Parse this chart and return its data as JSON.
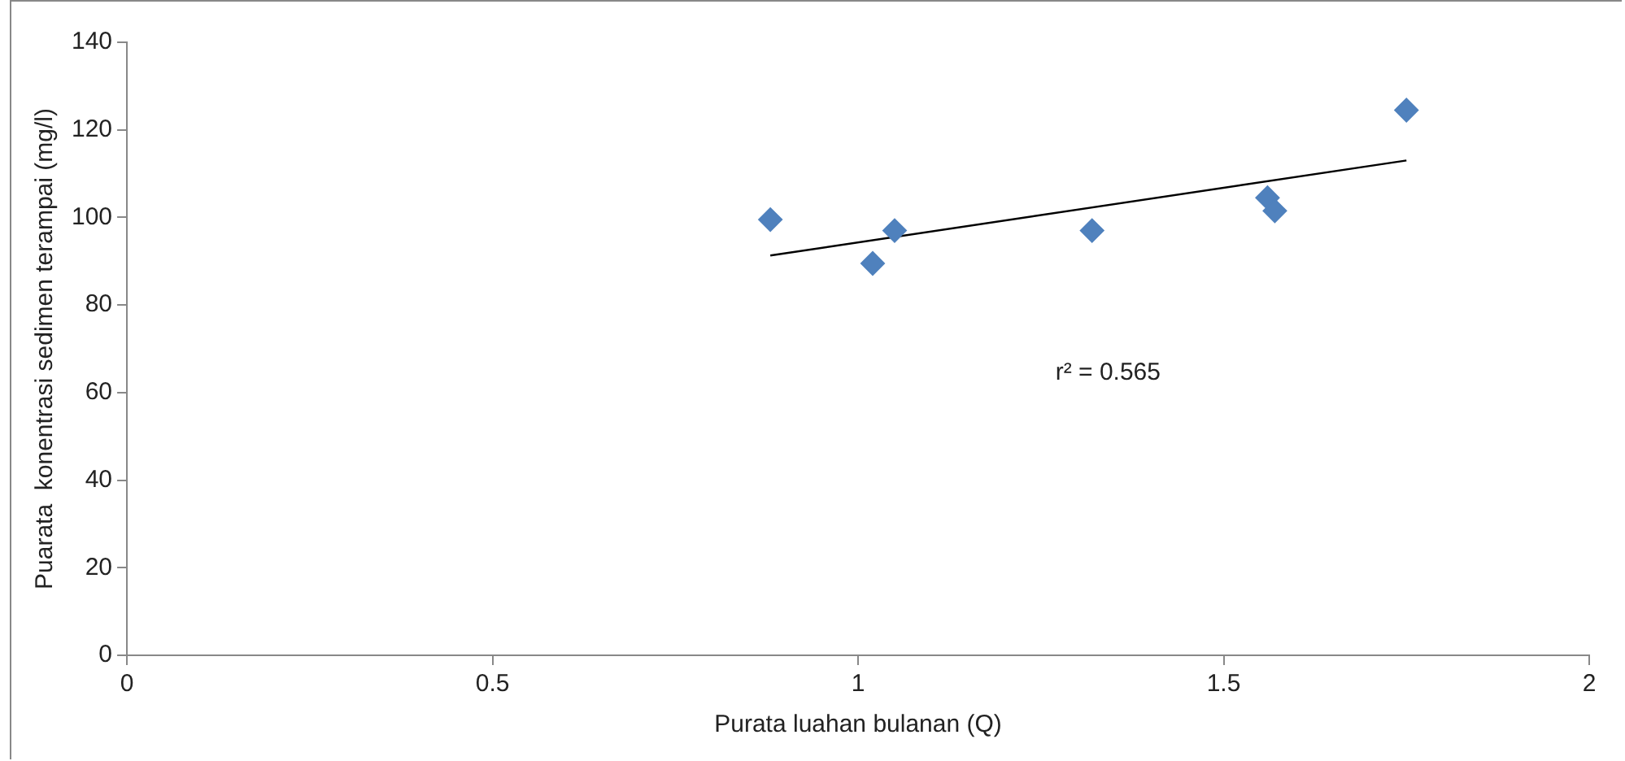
{
  "chart_data": {
    "type": "scatter",
    "xlabel": "Purata luahan bulanan (Q)",
    "ylabel": "Puarata  konentrasi sedimen terampai (mg/l)",
    "xlim": [
      0,
      2
    ],
    "xticks": [
      0,
      0.5,
      1,
      1.5,
      2
    ],
    "ylim": [
      0,
      140
    ],
    "yticks": [
      0,
      20,
      40,
      60,
      80,
      100,
      120,
      140
    ],
    "grid": false,
    "legend": false,
    "marker": "diamond",
    "annotations": [
      "r² = 0.565"
    ],
    "series": [
      {
        "color": "#4f81bd",
        "x": [
          0.88,
          1.02,
          1.05,
          1.32,
          1.56,
          1.57,
          1.75
        ],
        "values": [
          99.5,
          89.5,
          97,
          97,
          104.5,
          101.5,
          124.5
        ]
      },
      {
        "type": "line",
        "color": "#000000",
        "line_style": "solid",
        "marker": "none",
        "x": [
          0.88,
          1.75
        ],
        "values": [
          91.3,
          113
        ]
      }
    ]
  }
}
